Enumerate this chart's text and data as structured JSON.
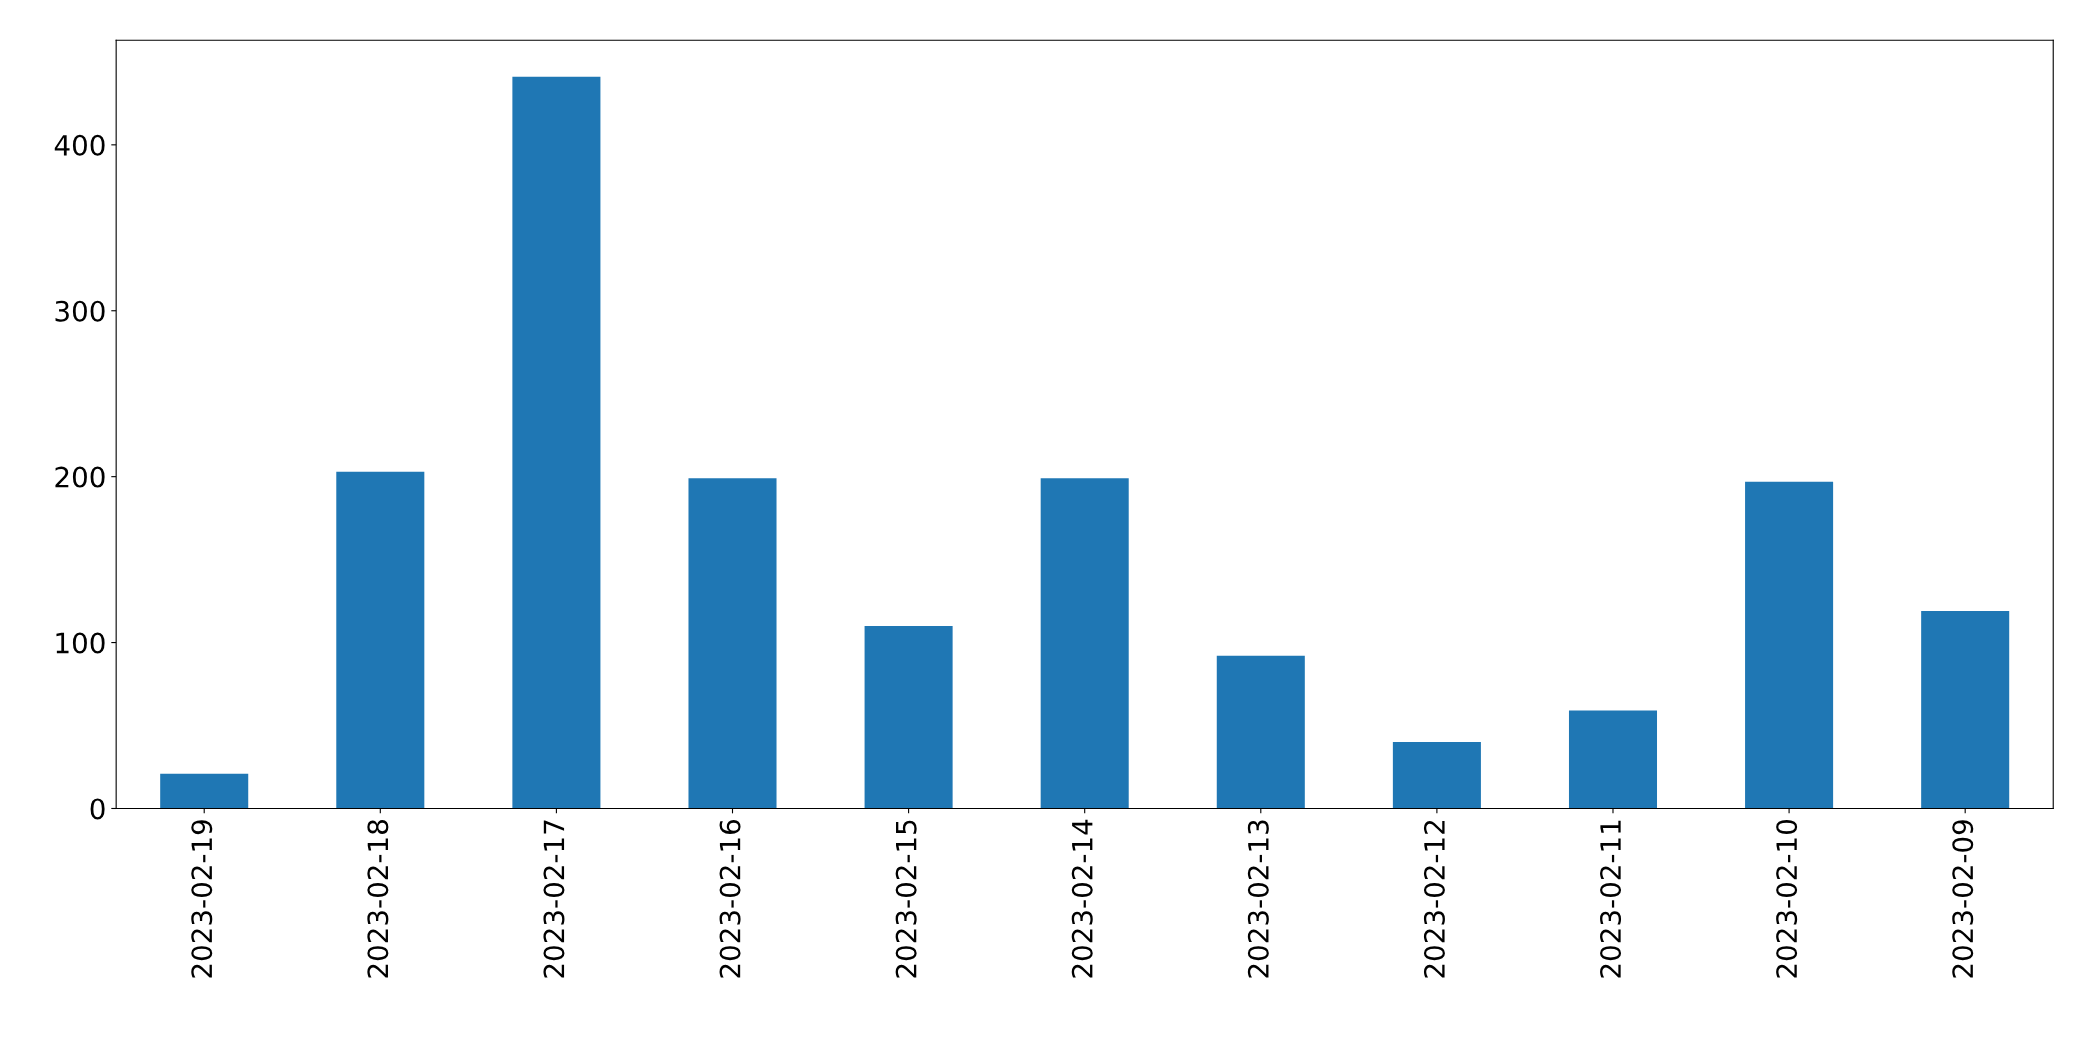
{
  "chart_data": {
    "type": "bar",
    "categories": [
      "2023-02-19",
      "2023-02-18",
      "2023-02-17",
      "2023-02-16",
      "2023-02-15",
      "2023-02-14",
      "2023-02-13",
      "2023-02-12",
      "2023-02-11",
      "2023-02-10",
      "2023-02-09"
    ],
    "values": [
      21,
      203,
      441,
      199,
      110,
      199,
      92,
      40,
      59,
      197,
      119
    ],
    "color": "#1f77b4",
    "ylim": [
      0,
      463
    ],
    "yticks": [
      0,
      100,
      200,
      300,
      400
    ],
    "grid": false,
    "legend": false
  }
}
